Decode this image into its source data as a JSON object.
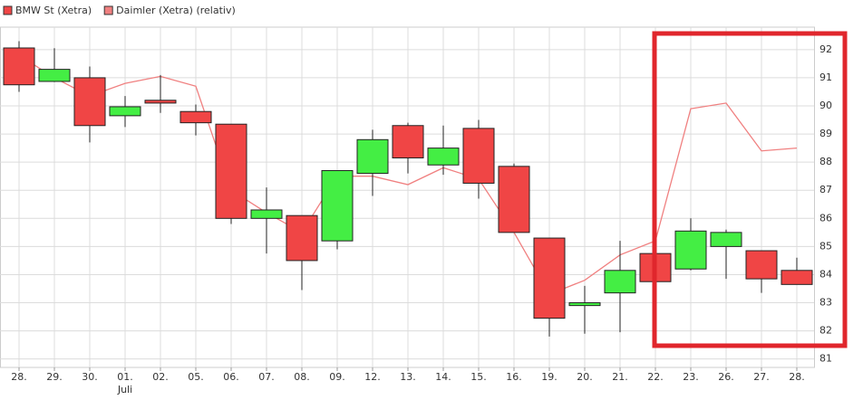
{
  "chart_data": {
    "type": "candlestick",
    "categories": [
      "28.",
      "29.",
      "30.",
      "01.",
      "02.",
      "05.",
      "06.",
      "07.",
      "08.",
      "09.",
      "12.",
      "13.",
      "14.",
      "15.",
      "16.",
      "19.",
      "20.",
      "21.",
      "22.",
      "23.",
      "26.",
      "27.",
      "28."
    ],
    "category_sublabels": [
      null,
      null,
      null,
      "Juli",
      null,
      null,
      null,
      null,
      null,
      null,
      null,
      null,
      null,
      null,
      null,
      null,
      null,
      null,
      null,
      null,
      null,
      null,
      null
    ],
    "series": [
      {
        "name": "BMW St (Xetra)",
        "type": "candlestick",
        "color": "#f04545",
        "up_color": "#44ee44",
        "down_color": "#f04545",
        "open": [
          92.06,
          90.87,
          91.0,
          89.65,
          90.2,
          89.8,
          89.35,
          86.0,
          86.1,
          85.2,
          87.6,
          89.3,
          87.9,
          89.2,
          87.85,
          85.3,
          82.9,
          83.35,
          84.75,
          84.2,
          85.0,
          84.85,
          84.15
        ],
        "high": [
          92.3,
          92.05,
          91.4,
          90.35,
          91.1,
          90.05,
          89.35,
          87.1,
          86.1,
          87.7,
          89.15,
          89.4,
          89.3,
          89.5,
          87.95,
          85.3,
          83.6,
          85.2,
          84.75,
          86.0,
          85.6,
          84.85,
          84.6
        ],
        "low": [
          90.5,
          90.85,
          88.7,
          89.25,
          89.75,
          88.95,
          85.8,
          84.75,
          83.45,
          84.9,
          86.8,
          87.6,
          87.55,
          86.7,
          85.5,
          81.8,
          81.9,
          81.95,
          83.75,
          84.15,
          83.85,
          83.35,
          83.65
        ],
        "close": [
          90.75,
          91.3,
          89.3,
          89.97,
          90.1,
          89.4,
          86.0,
          86.3,
          84.5,
          87.7,
          88.8,
          88.15,
          88.5,
          87.25,
          85.5,
          82.45,
          83.0,
          84.15,
          83.75,
          85.55,
          85.5,
          83.85,
          83.65
        ]
      },
      {
        "name": "Daimler (Xetra) (relativ)",
        "type": "line",
        "color": "#f08080",
        "values": [
          91.8,
          91.0,
          90.35,
          90.8,
          91.05,
          90.7,
          87.0,
          86.2,
          85.5,
          87.5,
          87.5,
          87.2,
          87.8,
          87.4,
          85.5,
          83.3,
          83.8,
          84.7,
          85.2,
          89.9,
          90.1,
          88.4,
          88.5
        ]
      }
    ],
    "ylim": [
      80.7,
      92.8
    ],
    "yticks": [
      81,
      82,
      83,
      84,
      85,
      86,
      87,
      88,
      89,
      90,
      91,
      92
    ],
    "grid": true
  }
}
